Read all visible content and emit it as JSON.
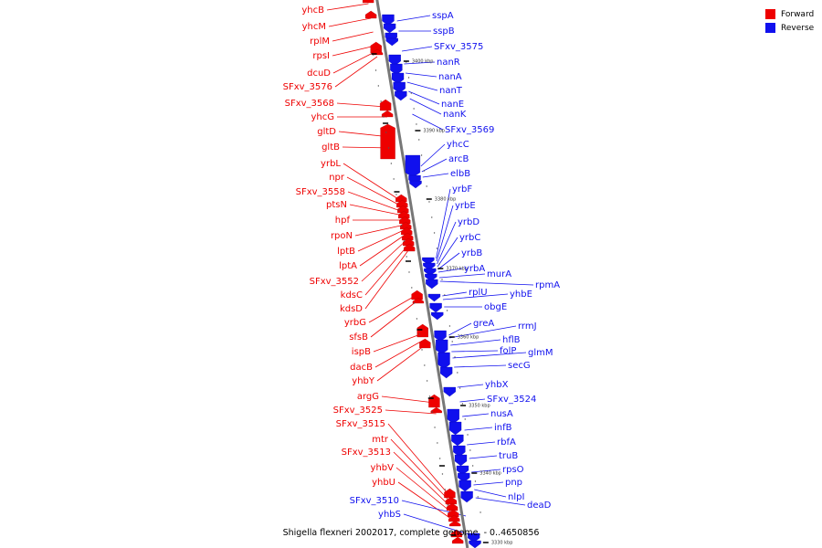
{
  "colors": {
    "forward": "#ee0000",
    "reverse": "#1010ee",
    "backbone": "#777777"
  },
  "legend": [
    {
      "label": "Forward",
      "color": "#ee0000"
    },
    {
      "label": "Reverse",
      "color": "#1010ee"
    }
  ],
  "caption": "Shigella flexneri 2002017, complete genome. - 0..4650856",
  "tick_labels": [
    "3400 kbp",
    "3390 kbp",
    "3380 kbp",
    "3370 kbp",
    "3360 kbp",
    "3350 kbp",
    "3340 kbp",
    "3330 kbp"
  ],
  "forward_genes": [
    "yhcB",
    "yhcM",
    "rplM",
    "rpsI",
    "dcuD",
    "SFxv_3576",
    "SFxv_3568",
    "yhcG",
    "gltD",
    "gltB",
    "yrbL",
    "npr",
    "SFxv_3558",
    "ptsN",
    "hpf",
    "rpoN",
    "lptB",
    "lptA",
    "SFxv_3552",
    "kdsC",
    "kdsD",
    "yrbG",
    "sfsB",
    "ispB",
    "dacB",
    "yhbY",
    "argG",
    "SFxv_3525",
    "SFxv_3515",
    "mtr",
    "SFxv_3513",
    "yhbV",
    "yhbU"
  ],
  "reverse_left_genes": [
    "SFxv_3510",
    "yhbS"
  ],
  "reverse_genes": [
    "sspA",
    "sspB",
    "SFxv_3575",
    "nanR",
    "nanA",
    "nanT",
    "nanE",
    "nanK",
    "SFxv_3569",
    "yhcC",
    "arcB",
    "elbB",
    "yrbF",
    "yrbE",
    "yrbD",
    "yrbC",
    "yrbB",
    "yrbA",
    "murA",
    "rpmA",
    "rplU",
    "yhbE",
    "obgE",
    "greA",
    "rrmJ",
    "hflB",
    "folP",
    "glmM",
    "secG",
    "yhbX",
    "SFxv_3524",
    "nusA",
    "infB",
    "rbfA",
    "truB",
    "rpsO",
    "pnp",
    "nlpI",
    "deaD"
  ]
}
